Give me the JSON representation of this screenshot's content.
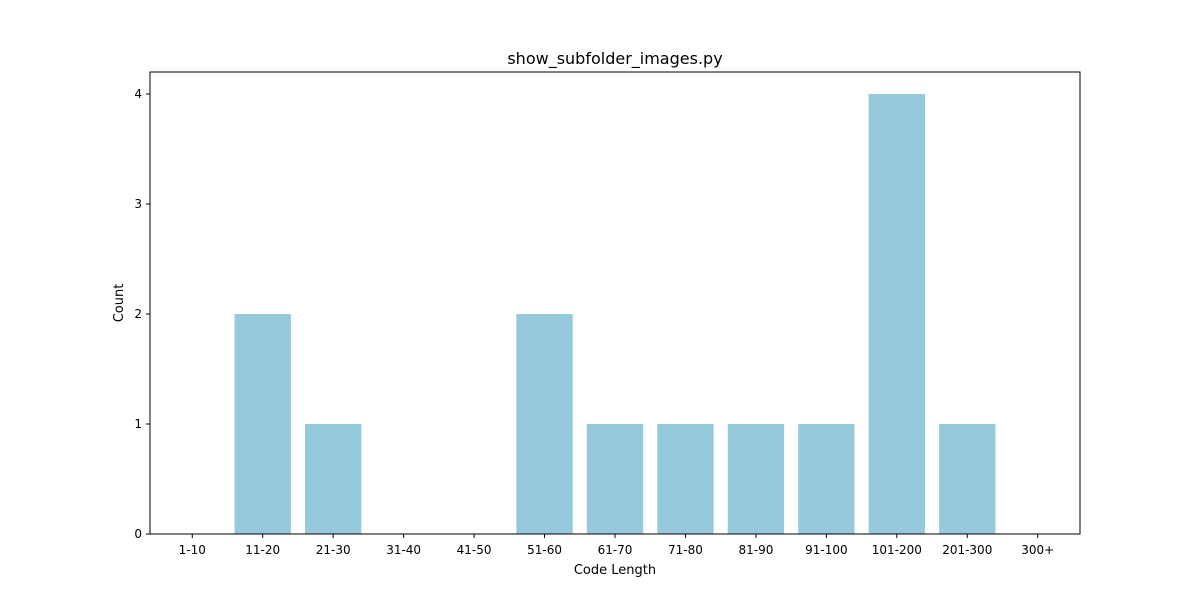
{
  "chart_data": {
    "type": "bar",
    "title": "show_subfolder_images.py",
    "xlabel": "Code Length",
    "ylabel": "Count",
    "categories": [
      "1-10",
      "11-20",
      "21-30",
      "31-40",
      "41-50",
      "51-60",
      "61-70",
      "71-80",
      "81-90",
      "91-100",
      "101-200",
      "201-300",
      "300+"
    ],
    "values": [
      0,
      2,
      1,
      0,
      0,
      2,
      1,
      1,
      1,
      1,
      4,
      1,
      0
    ],
    "yticks": [
      0,
      1,
      2,
      3,
      4
    ],
    "ylim": [
      0,
      4.2
    ],
    "bar_color": "#96c9dc",
    "grid": false,
    "legend": false
  }
}
